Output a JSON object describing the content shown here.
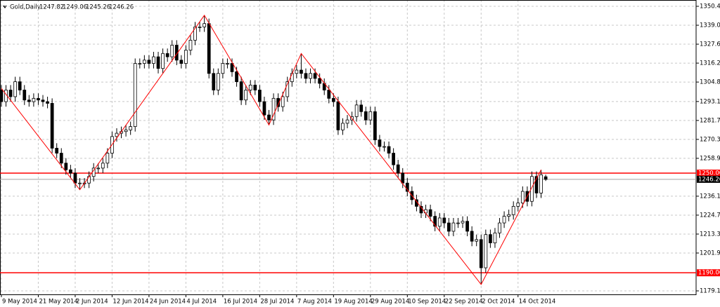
{
  "chart_data": {
    "type": "candlestick",
    "header": {
      "symbol": "Gold,Daily",
      "values": [
        "1247.82",
        "1249.06",
        "1245.26",
        "1246.26"
      ]
    },
    "x": [
      0,
      1,
      2,
      3,
      4,
      5,
      6,
      7,
      8,
      9,
      10,
      11,
      12,
      13,
      14,
      15,
      16,
      17,
      18,
      19,
      20,
      21,
      22,
      23,
      24,
      25,
      26,
      27,
      28,
      29,
      30,
      31,
      32,
      33,
      34,
      35,
      36,
      37,
      38,
      39,
      40,
      41,
      42,
      43,
      44,
      45,
      46,
      47,
      48,
      49,
      50,
      51,
      52,
      53,
      54,
      55,
      56,
      57,
      58,
      59,
      60,
      61,
      62,
      63,
      64,
      65,
      66,
      67,
      68,
      69,
      70,
      71,
      72,
      73,
      74,
      75,
      76,
      77,
      78,
      79,
      80,
      81,
      82,
      83,
      84,
      85,
      86,
      87,
      88,
      89,
      90,
      91,
      92,
      93,
      94,
      95,
      96,
      97,
      98,
      99,
      100,
      101,
      102,
      103,
      104,
      105,
      106,
      107,
      108,
      109,
      110,
      111,
      112,
      113,
      114,
      115,
      116,
      117,
      118
    ],
    "open": [
      1300,
      1293,
      1300,
      1296,
      1305,
      1300,
      1294,
      1293,
      1295,
      1294,
      1293,
      1292,
      1265,
      1262,
      1256,
      1252,
      1250,
      1244,
      1244,
      1244,
      1248,
      1253,
      1253,
      1256,
      1262,
      1272,
      1274,
      1275,
      1276,
      1278,
      1316,
      1316,
      1318,
      1316,
      1320,
      1313,
      1322,
      1320,
      1327,
      1318,
      1316,
      1324,
      1330,
      1338,
      1338,
      1340,
      1310,
      1300,
      1310,
      1316,
      1316,
      1311,
      1305,
      1294,
      1300,
      1303,
      1300,
      1293,
      1285,
      1282,
      1295,
      1290,
      1296,
      1305,
      1310,
      1312,
      1310,
      1307,
      1310,
      1307,
      1304,
      1300,
      1295,
      1293,
      1276,
      1280,
      1282,
      1284,
      1291,
      1287,
      1282,
      1287,
      1270,
      1266,
      1266,
      1262,
      1255,
      1250,
      1244,
      1239,
      1234,
      1230,
      1226,
      1228,
      1224,
      1218,
      1223,
      1220,
      1215,
      1220,
      1220,
      1221,
      1215,
      1209,
      1210,
      1193,
      1213,
      1208,
      1214,
      1220,
      1224,
      1225,
      1230,
      1232,
      1239,
      1233,
      1248,
      1238,
      1247.82
    ],
    "high": [
      1303,
      1303,
      1303,
      1308,
      1308,
      1303,
      1297,
      1298,
      1298,
      1297,
      1296,
      1295,
      1268,
      1265,
      1259,
      1255,
      1253,
      1247,
      1247,
      1251,
      1256,
      1256,
      1259,
      1265,
      1275,
      1277,
      1278,
      1279,
      1281,
      1319,
      1319,
      1321,
      1321,
      1323,
      1323,
      1325,
      1325,
      1330,
      1330,
      1321,
      1327,
      1333,
      1341,
      1341,
      1345,
      1343,
      1313,
      1313,
      1319,
      1319,
      1319,
      1314,
      1308,
      1303,
      1306,
      1306,
      1303,
      1296,
      1288,
      1298,
      1298,
      1299,
      1308,
      1313,
      1315,
      1322,
      1313,
      1313,
      1313,
      1310,
      1307,
      1303,
      1298,
      1296,
      1283,
      1285,
      1287,
      1294,
      1294,
      1290,
      1290,
      1290,
      1273,
      1269,
      1269,
      1265,
      1258,
      1253,
      1247,
      1242,
      1237,
      1233,
      1231,
      1231,
      1227,
      1226,
      1226,
      1223,
      1223,
      1223,
      1224,
      1224,
      1218,
      1213,
      1213,
      1216,
      1216,
      1217,
      1223,
      1227,
      1228,
      1233,
      1235,
      1242,
      1242,
      1251,
      1251,
      1252,
      1249.06
    ],
    "low": [
      1290,
      1290,
      1293,
      1293,
      1297,
      1291,
      1290,
      1290,
      1291,
      1290,
      1289,
      1262,
      1259,
      1253,
      1249,
      1247,
      1241,
      1240,
      1241,
      1241,
      1245,
      1250,
      1250,
      1253,
      1259,
      1269,
      1271,
      1272,
      1273,
      1275,
      1313,
      1313,
      1313,
      1313,
      1310,
      1310,
      1317,
      1317,
      1315,
      1313,
      1313,
      1321,
      1327,
      1335,
      1335,
      1307,
      1297,
      1297,
      1307,
      1313,
      1308,
      1302,
      1291,
      1291,
      1297,
      1297,
      1290,
      1282,
      1279,
      1279,
      1287,
      1287,
      1293,
      1302,
      1307,
      1307,
      1304,
      1304,
      1304,
      1301,
      1297,
      1292,
      1290,
      1273,
      1273,
      1277,
      1279,
      1281,
      1284,
      1279,
      1279,
      1267,
      1263,
      1263,
      1259,
      1252,
      1247,
      1241,
      1236,
      1231,
      1227,
      1223,
      1223,
      1221,
      1215,
      1215,
      1217,
      1212,
      1212,
      1217,
      1217,
      1212,
      1206,
      1206,
      1183,
      1190,
      1205,
      1205,
      1211,
      1217,
      1221,
      1222,
      1227,
      1229,
      1230,
      1230,
      1235,
      1235,
      1245.26
    ],
    "close": [
      1293,
      1300,
      1296,
      1305,
      1300,
      1294,
      1293,
      1295,
      1294,
      1293,
      1292,
      1265,
      1262,
      1256,
      1252,
      1250,
      1244,
      1244,
      1244,
      1248,
      1253,
      1253,
      1256,
      1262,
      1272,
      1274,
      1275,
      1276,
      1278,
      1316,
      1316,
      1318,
      1316,
      1320,
      1313,
      1322,
      1320,
      1327,
      1318,
      1316,
      1324,
      1330,
      1338,
      1338,
      1340,
      1310,
      1300,
      1310,
      1316,
      1316,
      1311,
      1305,
      1294,
      1300,
      1303,
      1300,
      1293,
      1285,
      1282,
      1295,
      1290,
      1296,
      1305,
      1310,
      1312,
      1310,
      1307,
      1310,
      1307,
      1304,
      1300,
      1295,
      1293,
      1276,
      1280,
      1282,
      1284,
      1291,
      1287,
      1282,
      1287,
      1270,
      1266,
      1266,
      1262,
      1255,
      1250,
      1244,
      1239,
      1234,
      1230,
      1226,
      1228,
      1224,
      1218,
      1223,
      1220,
      1215,
      1220,
      1220,
      1221,
      1215,
      1209,
      1210,
      1193,
      1213,
      1208,
      1214,
      1220,
      1224,
      1225,
      1230,
      1232,
      1239,
      1233,
      1248,
      1238,
      1249,
      1246.26
    ],
    "zigzag": {
      "color": "#ff0000",
      "x": [
        0,
        17,
        44,
        58,
        65,
        104,
        117
      ],
      "values": [
        1301,
        1240,
        1345,
        1279,
        1322,
        1183,
        1252
      ]
    },
    "hlines": [
      {
        "value": 1250,
        "label": "1250.00",
        "color": "#ff0000"
      },
      {
        "value": 1190,
        "label": "1190.00",
        "color": "#ff0000"
      }
    ],
    "last_price": {
      "value": 1246.26,
      "label": "1246.26"
    },
    "xlim": [
      -0.3,
      150.6
    ],
    "ylim": [
      1177.0,
      1354.2
    ],
    "xticks": [
      {
        "value": 0,
        "label": "9 May 2014"
      },
      {
        "value": 8,
        "label": "21 May 2014"
      },
      {
        "value": 16,
        "label": "2 Jun 2014"
      },
      {
        "value": 24,
        "label": "12 Jun 2014"
      },
      {
        "value": 32,
        "label": "24 Jun 2014"
      },
      {
        "value": 40,
        "label": "4 Jul 2014"
      },
      {
        "value": 48,
        "label": "16 Jul 2014"
      },
      {
        "value": 56,
        "label": "28 Jul 2014"
      },
      {
        "value": 64,
        "label": "7 Aug 2014"
      },
      {
        "value": 72,
        "label": "19 Aug 2014"
      },
      {
        "value": 80,
        "label": "29 Aug 2014"
      },
      {
        "value": 88,
        "label": "10 Sep 2014"
      },
      {
        "value": 96,
        "label": "22 Sep 2014"
      },
      {
        "value": 104,
        "label": "2 Oct 2014"
      },
      {
        "value": 112,
        "label": "14 Oct 2014"
      }
    ],
    "yticks": [
      {
        "value": 1350.4,
        "label": "1350.40"
      },
      {
        "value": 1339,
        "label": "1339.00"
      },
      {
        "value": 1327.6,
        "label": "1327.60"
      },
      {
        "value": 1316.2,
        "label": "1316.20"
      },
      {
        "value": 1304.8,
        "label": "1304.80"
      },
      {
        "value": 1293.1,
        "label": "1293.10"
      },
      {
        "value": 1281.7,
        "label": "1281.70"
      },
      {
        "value": 1270.3,
        "label": "1270.30"
      },
      {
        "value": 1258.9,
        "label": "1258.90"
      },
      {
        "value": 1236.1,
        "label": "1236.10"
      },
      {
        "value": 1224.7,
        "label": "1224.70"
      },
      {
        "value": 1213.3,
        "label": "1213.30"
      },
      {
        "value": 1201.9,
        "label": "1201.90"
      },
      {
        "value": 1179.11,
        "label": "1179.11"
      }
    ],
    "grid": true
  }
}
